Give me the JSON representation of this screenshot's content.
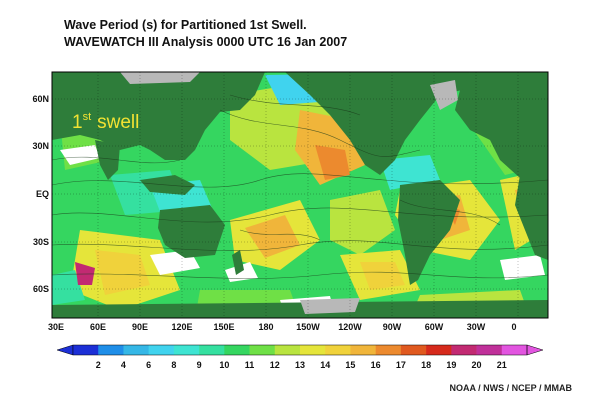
{
  "title": {
    "line1": "Wave Period (s) for Partitioned 1st Swell.",
    "line2": "WAVEWATCH III Analysis 0000 UTC 16 Jan 2007"
  },
  "map": {
    "label_main": "1",
    "label_sup": "st",
    "label_rest": "swell",
    "lat_labels": [
      "60N",
      "30N",
      "EQ",
      "30S",
      "60S"
    ],
    "lon_labels": [
      "30E",
      "60E",
      "90E",
      "120E",
      "150E",
      "180",
      "150W",
      "120W",
      "90W",
      "60W",
      "30W",
      "0"
    ],
    "land_color": "#2e7d3a",
    "ice_color": "#b8b8b8"
  },
  "colorbar": {
    "ticks": [
      "2",
      "4",
      "6",
      "8",
      "9",
      "10",
      "11",
      "12",
      "13",
      "14",
      "15",
      "16",
      "17",
      "18",
      "19",
      "20",
      "21"
    ],
    "colors": [
      "#1c2fd6",
      "#1f8ee8",
      "#35b7e6",
      "#40d3ee",
      "#3ee4d2",
      "#35e0a0",
      "#35d660",
      "#6fe046",
      "#b9e43f",
      "#e5e53a",
      "#f0d23b",
      "#f0b53a",
      "#ec8a2e",
      "#e0591f",
      "#d62a1c",
      "#c22a72",
      "#c0309a",
      "#e255e0"
    ]
  },
  "credit": "NOAA / NWS / NCEP / MMAB"
}
